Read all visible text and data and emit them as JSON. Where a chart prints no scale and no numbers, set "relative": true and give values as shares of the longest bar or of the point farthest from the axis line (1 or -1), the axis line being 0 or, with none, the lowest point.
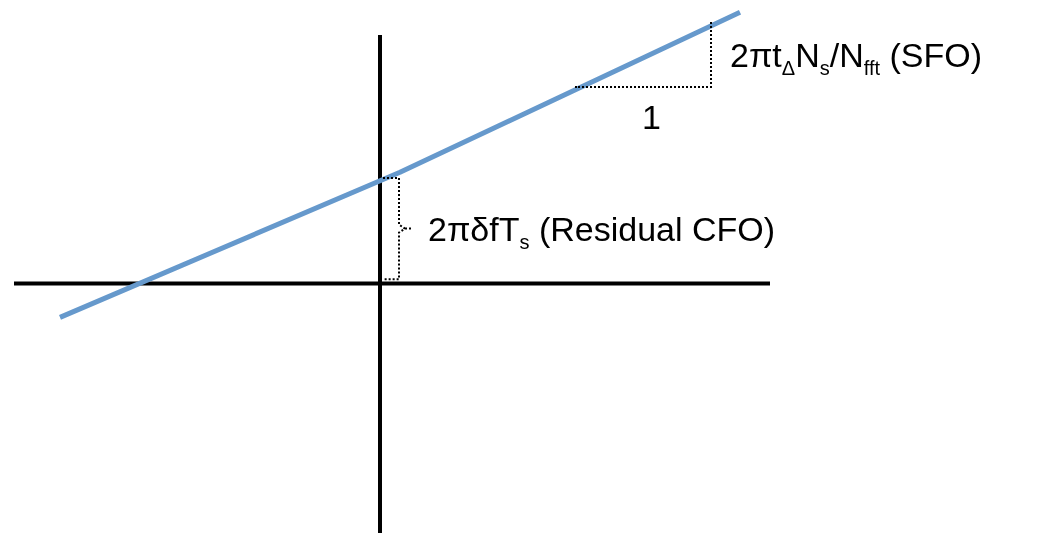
{
  "chart_data": {
    "type": "line",
    "relative": true,
    "categories": [
      null,
      null,
      null
    ],
    "series": [
      {
        "color": "#6699cc",
        "values": [
          -0.125,
          0.41,
          1
        ]
      }
    ],
    "annotations": [
      "2πt$_{Δ}$N$_{s}$/N$_{fft}$ (SFO)",
      "1",
      "2πδfT$_{s}$ (Residual CFO)"
    ],
    "legend": false,
    "marker": "none",
    "line_style": "solid"
  }
}
